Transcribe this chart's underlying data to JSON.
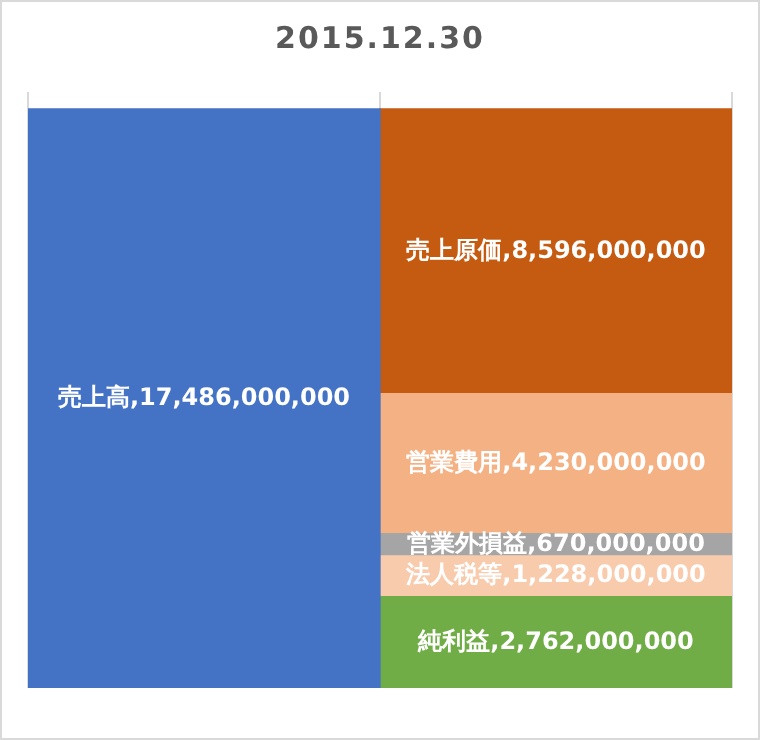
{
  "chart_data": {
    "type": "bar",
    "title": "2015.12.30",
    "categories": [
      null,
      null
    ],
    "stacked": true,
    "series": [
      {
        "color": "#4472c4",
        "values": [
          17486000000,
          null
        ],
        "value_labels": [
          "売上高,17,486,000,000",
          null
        ]
      },
      {
        "color": "#70ad47",
        "values": [
          null,
          2762000000
        ],
        "value_labels": [
          null,
          "純利益,2,762,000,000"
        ]
      },
      {
        "color": "#f8cbad",
        "values": [
          null,
          1228000000
        ],
        "value_labels": [
          null,
          "法人税等,1,228,000,000"
        ]
      },
      {
        "color": "#a5a5a5",
        "values": [
          null,
          670000000
        ],
        "value_labels": [
          null,
          "営業外損益,670,000,000"
        ]
      },
      {
        "color": "#f4b183",
        "values": [
          null,
          4230000000
        ],
        "value_labels": [
          null,
          "営業費用,4,230,000,000"
        ]
      },
      {
        "color": "#c55a11",
        "values": [
          null,
          8596000000
        ],
        "value_labels": [
          null,
          "売上原価,8,596,000,000"
        ]
      }
    ],
    "grid": "x",
    "tick_labels": false
  }
}
